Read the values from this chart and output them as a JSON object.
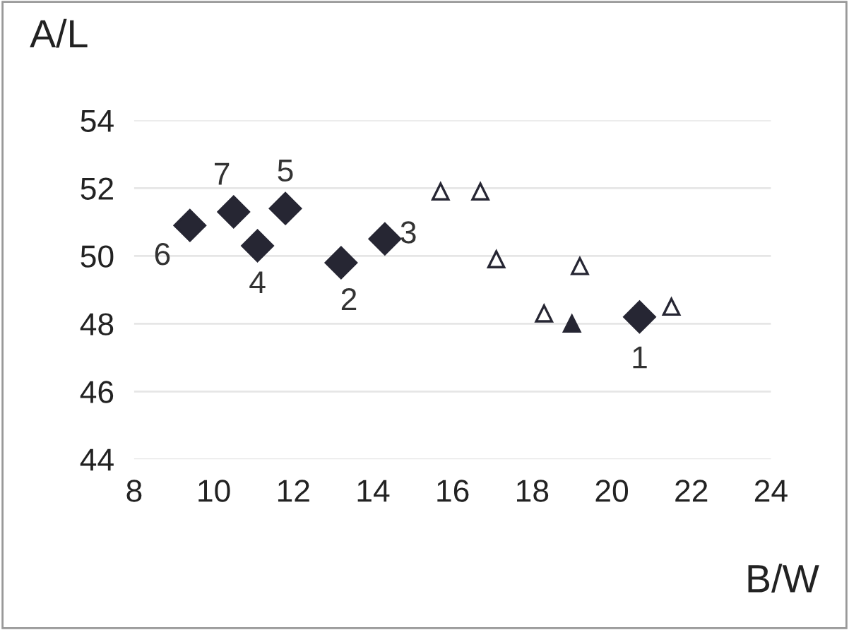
{
  "chart_data": {
    "type": "scatter",
    "xlabel": "B/W",
    "ylabel": "A/L",
    "xlim": [
      8,
      24
    ],
    "ylim": [
      44,
      54
    ],
    "xticks": [
      8,
      10,
      12,
      14,
      16,
      18,
      20,
      22,
      24
    ],
    "yticks": [
      44,
      46,
      48,
      50,
      52,
      54
    ],
    "grid": "y",
    "series": [
      {
        "color": "#262633",
        "marker": "diamond",
        "x": [
          20.7,
          13.2,
          14.3,
          11.1,
          11.8,
          9.4,
          10.5
        ],
        "values": [
          48.2,
          49.8,
          50.5,
          50.3,
          51.4,
          50.9,
          51.3
        ]
      },
      {
        "color": "#ffffff",
        "marker": "triangle",
        "x": [
          15.7,
          16.7,
          17.1,
          19.2,
          18.3,
          21.5
        ],
        "values": [
          51.9,
          51.9,
          49.9,
          49.7,
          48.3,
          48.5
        ]
      },
      {
        "color": "#262633",
        "marker": "triangle",
        "x": [
          19.0
        ],
        "values": [
          48.0
        ]
      }
    ],
    "annotations": [
      {
        "text": "1",
        "x": 20.7,
        "y": 48.2
      },
      {
        "text": "2",
        "x": 13.2,
        "y": 49.8
      },
      {
        "text": "3",
        "x": 14.3,
        "y": 50.5
      },
      {
        "text": "4",
        "x": 11.1,
        "y": 50.3
      },
      {
        "text": "5",
        "x": 11.8,
        "y": 51.4
      },
      {
        "text": "6",
        "x": 9.4,
        "y": 50.9
      },
      {
        "text": "7",
        "x": 10.5,
        "y": 51.3
      }
    ]
  }
}
